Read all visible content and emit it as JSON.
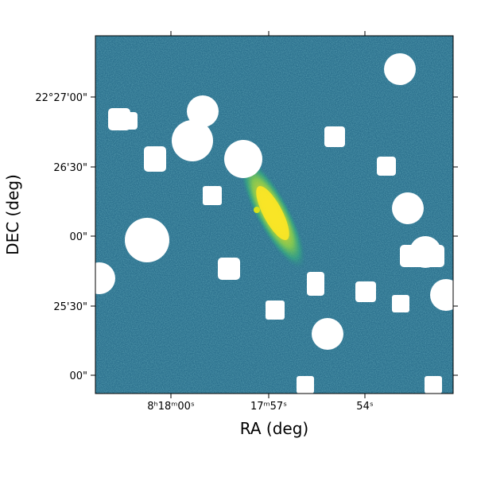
{
  "chart_data": {
    "type": "image",
    "xlabel": "RA (deg)",
    "ylabel": "DEC (deg)",
    "xtick_labels": [
      "8ʰ18ᵐ00ˢ",
      "17ᵐ57ˢ",
      "54ˢ"
    ],
    "ytick_labels": [
      "22°27'00\"",
      "26'30\"",
      "00\"",
      "25'30\"",
      "00\""
    ]
  }
}
